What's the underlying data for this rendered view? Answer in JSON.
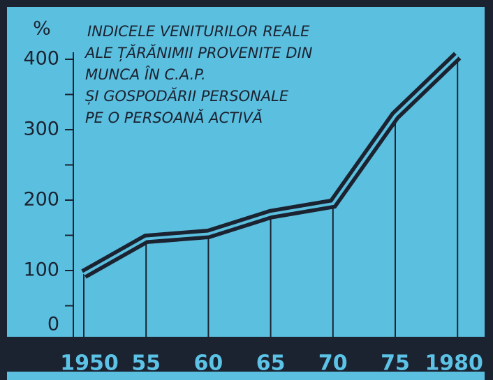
{
  "chart_data": {
    "type": "line",
    "title_lines": [
      "INDICELE VENITURILOR REALE",
      "ALE ȚĂRĂNIMII PROVENITE DIN",
      "MUNCA ÎN C.A.P.",
      "ȘI GOSPODĂRII PERSONALE",
      "PE O PERSOANĂ ACTIVĂ"
    ],
    "y_label": "%",
    "categories": [
      "1950",
      "55",
      "60",
      "65",
      "70",
      "75",
      "1980"
    ],
    "values": [
      95,
      145,
      152,
      180,
      195,
      320,
      405
    ],
    "color": "#1b2230",
    "ylim": [
      0,
      400
    ],
    "yticks": [
      0,
      100,
      200,
      300,
      400
    ]
  }
}
